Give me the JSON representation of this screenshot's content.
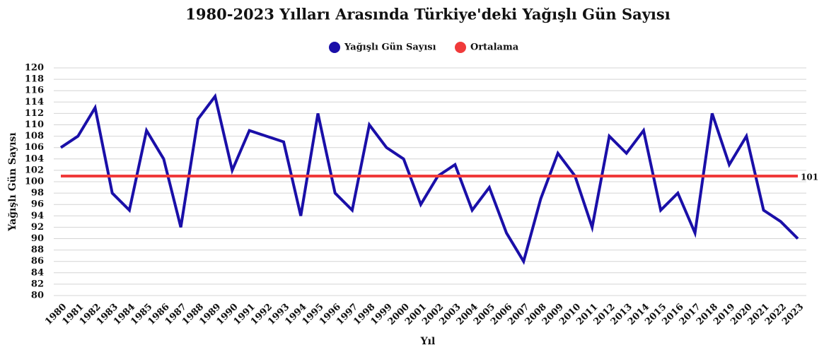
{
  "chart_data": {
    "type": "line",
    "title": "1980-2023 Yılları Arasında Türkiye'deki Yağışlı Gün Sayısı",
    "x_label": "Yıl",
    "y_label": "Yağışlı Gün Sayısı",
    "categories": [
      "1980",
      "1981",
      "1982",
      "1983",
      "1984",
      "1985",
      "1986",
      "1987",
      "1988",
      "1989",
      "1990",
      "1991",
      "1992",
      "1993",
      "1994",
      "1995",
      "1996",
      "1997",
      "1998",
      "1999",
      "2000",
      "2001",
      "2002",
      "2003",
      "2004",
      "2005",
      "2006",
      "2007",
      "2008",
      "2009",
      "2010",
      "2011",
      "2012",
      "2013",
      "2014",
      "2015",
      "2016",
      "2017",
      "2018",
      "2019",
      "2020",
      "2021",
      "2022",
      "2023"
    ],
    "series": [
      {
        "name": "Yağışlı Gün Sayısı",
        "color": "#1a0fa8",
        "values": [
          106,
          108,
          113,
          98,
          95,
          109,
          104,
          92,
          111,
          115,
          102,
          109,
          108,
          107,
          94,
          112,
          98,
          95,
          110,
          106,
          104,
          96,
          101,
          103,
          95,
          99,
          91,
          86,
          97,
          105,
          101,
          92,
          108,
          105,
          109,
          95,
          98,
          91,
          112,
          103,
          108,
          95,
          93,
          90
        ]
      }
    ],
    "average": {
      "name": "Ortalama",
      "color": "#f03a3a",
      "value": 101
    },
    "ylim": [
      80,
      120
    ],
    "yticks": [
      80,
      82,
      84,
      86,
      88,
      90,
      92,
      94,
      96,
      98,
      100,
      102,
      104,
      106,
      108,
      110,
      112,
      114,
      116,
      118,
      120
    ],
    "grid": true
  }
}
